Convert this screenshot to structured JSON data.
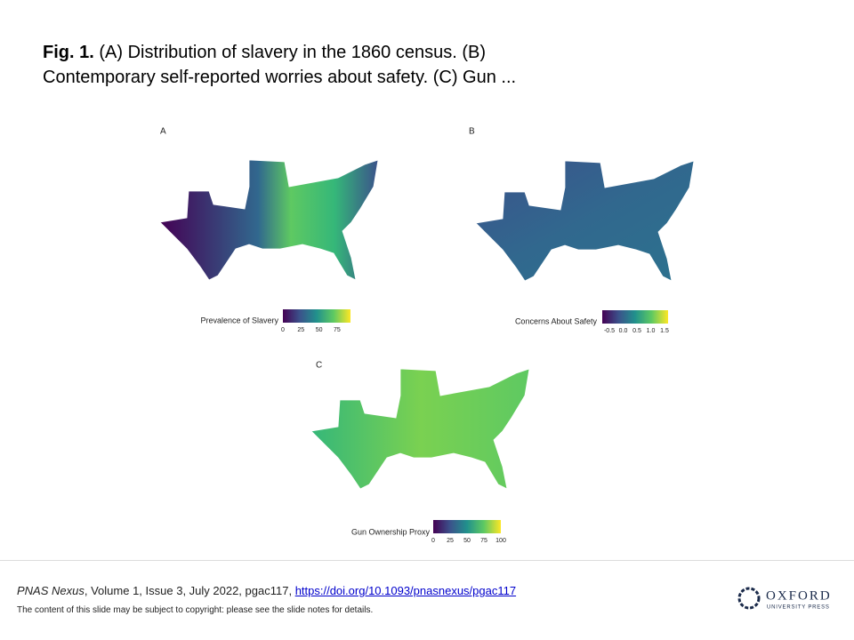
{
  "title": {
    "label": "Fig. 1.",
    "text": "(A) Distribution of slavery in the 1860 census. (B) Contemporary self-reported worries about safety. (C) Gun ..."
  },
  "panels": [
    {
      "label": "A",
      "legend_title": "Prevalence of Slavery",
      "legend_ticks": [
        "0",
        "25",
        "50",
        "75"
      ]
    },
    {
      "label": "B",
      "legend_title": "Concerns About Safety",
      "legend_ticks": [
        "-0.5",
        "0.0",
        "0.5",
        "1.0",
        "1.5"
      ]
    },
    {
      "label": "C",
      "legend_title": "Gun Ownership Proxy",
      "legend_ticks": [
        "0",
        "25",
        "50",
        "75",
        "100"
      ]
    }
  ],
  "footer": {
    "journal": "PNAS Nexus",
    "citation": ", Volume 1, Issue 3, July 2022, pgac117, ",
    "link": "https://doi.org/10.1093/pnasnexus/pgac117",
    "notice": "The content of this slide may be subject to copyright: please see the slide notes for details."
  },
  "logo": {
    "name": "OXFORD",
    "sub": "UNIVERSITY PRESS"
  }
}
